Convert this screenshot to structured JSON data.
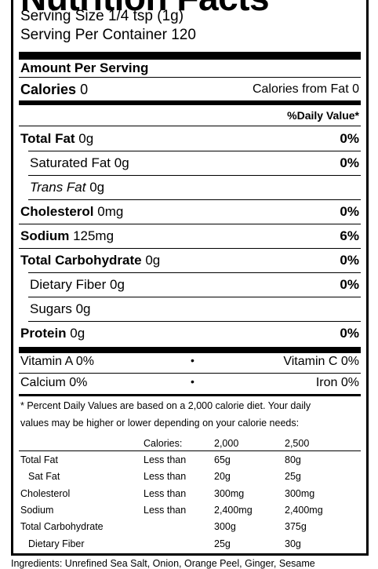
{
  "title": "Nutrition Facts",
  "serving_size": "Serving Size 1/4 tsp (1g)",
  "servings_per_container": "Serving Per Container 120",
  "amount_per_serving": "Amount Per Serving",
  "calories_label": "Calories",
  "calories_value": "0",
  "calories_from_fat": "Calories from Fat 0",
  "daily_value_header": "%Daily Value*",
  "nutrients": [
    {
      "label": "Total Fat",
      "amount": "0g",
      "dv": "0%",
      "bold": true,
      "indent": false
    },
    {
      "label": "Saturated Fat",
      "amount": "0g",
      "dv": "0%",
      "bold": false,
      "indent": true
    },
    {
      "label": "Trans Fat",
      "amount": "0g",
      "dv": "",
      "bold": false,
      "indent": true,
      "italic": true
    },
    {
      "label": "Cholesterol",
      "amount": "0mg",
      "dv": "0%",
      "bold": true,
      "indent": false
    },
    {
      "label": "Sodium",
      "amount": "125mg",
      "dv": "6%",
      "bold": true,
      "indent": false
    },
    {
      "label": "Total Carbohydrate",
      "amount": "0g",
      "dv": "0%",
      "bold": true,
      "indent": false
    },
    {
      "label": "Dietary Fiber",
      "amount": "0g",
      "dv": "0%",
      "bold": false,
      "indent": true
    },
    {
      "label": "Sugars",
      "amount": "0g",
      "dv": "",
      "bold": false,
      "indent": true
    },
    {
      "label": "Protein",
      "amount": "0g",
      "dv": "0%",
      "bold": true,
      "indent": false
    }
  ],
  "vitamins": [
    {
      "left": "Vitamin A 0%",
      "right": "Vitamin C 0%"
    },
    {
      "left": "Calcium 0%",
      "right": "Iron 0%"
    }
  ],
  "bullet": "•",
  "footnote_line1": "* Percent Daily Values are based on a 2,000 calorie diet. Your daily",
  "footnote_line2": "values may be higher or lower depending on your calorie needs:",
  "dv_table": {
    "header": [
      "",
      "Calories:",
      "2,000",
      "2,500"
    ],
    "rows": [
      [
        "Total Fat",
        "Less than",
        "65g",
        "80g"
      ],
      [
        "Sat Fat",
        "Less than",
        "20g",
        "25g"
      ],
      [
        "Cholesterol",
        "Less than",
        "300mg",
        "300mg"
      ],
      [
        "Sodium",
        "Less than",
        "2,400mg",
        "2,400mg"
      ],
      [
        "Total Carbohydrate",
        "",
        "300g",
        "375g"
      ],
      [
        "Dietary Fiber",
        "",
        "25g",
        "30g"
      ]
    ]
  },
  "ingredients": "Ingredients: Unrefined Sea Salt, Onion, Orange Peel, Ginger, Sesame"
}
